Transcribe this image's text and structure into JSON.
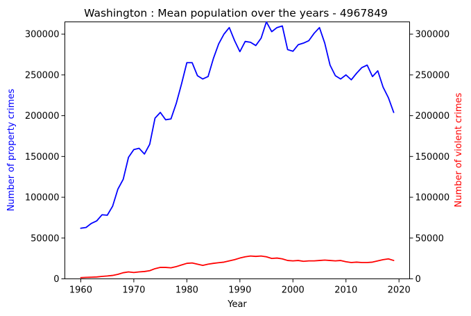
{
  "chart_data": {
    "type": "line",
    "title": "Washington : Mean population over the years - 4967849",
    "xlabel": "Year",
    "ylabel_left": "Number of property crimes",
    "ylabel_right": "Number of violent crimes",
    "xlim": [
      1957,
      2022
    ],
    "ylim": [
      0,
      315000
    ],
    "xticks": [
      1960,
      1970,
      1980,
      1990,
      2000,
      2010,
      2020
    ],
    "yticks": [
      0,
      50000,
      100000,
      150000,
      200000,
      250000,
      300000
    ],
    "grid": false,
    "x": [
      1960,
      1961,
      1962,
      1963,
      1964,
      1965,
      1966,
      1967,
      1968,
      1969,
      1970,
      1971,
      1972,
      1973,
      1974,
      1975,
      1976,
      1977,
      1978,
      1979,
      1980,
      1981,
      1982,
      1983,
      1984,
      1985,
      1986,
      1987,
      1988,
      1989,
      1990,
      1991,
      1992,
      1993,
      1994,
      1995,
      1996,
      1997,
      1998,
      1999,
      2000,
      2001,
      2002,
      2003,
      2004,
      2005,
      2006,
      2007,
      2008,
      2009,
      2010,
      2011,
      2012,
      2013,
      2014,
      2015,
      2016,
      2017,
      2018,
      2019
    ],
    "series": [
      {
        "name": "Number of property crimes",
        "color": "#0000ff",
        "axis": "left",
        "values": [
          62000,
          63000,
          68000,
          71000,
          78500,
          78000,
          89000,
          110000,
          122000,
          149000,
          158500,
          160000,
          153000,
          165000,
          197000,
          204000,
          195000,
          196000,
          215000,
          239000,
          265000,
          265000,
          249000,
          245000,
          248000,
          270000,
          288000,
          300000,
          308000,
          292000,
          278500,
          291000,
          290000,
          286000,
          295000,
          315000,
          303000,
          308000,
          310000,
          281000,
          279000,
          287000,
          289000,
          292000,
          301000,
          308000,
          289000,
          262000,
          249000,
          245000,
          250000,
          244000,
          252000,
          259000,
          262000,
          248000,
          255000,
          235000,
          222000,
          204000
        ]
      },
      {
        "name": "Number of violent crimes",
        "color": "#ff0000",
        "axis": "right",
        "values": [
          1500,
          1800,
          2000,
          2300,
          3000,
          3500,
          4200,
          5500,
          7500,
          8500,
          7800,
          8500,
          9000,
          10000,
          12500,
          14000,
          14000,
          13500,
          15000,
          17000,
          19000,
          19500,
          18000,
          16500,
          18000,
          19000,
          19800,
          20500,
          22000,
          23500,
          25500,
          27000,
          28000,
          27500,
          28000,
          27000,
          25000,
          25500,
          24500,
          22500,
          22000,
          22500,
          21500,
          22000,
          22000,
          22500,
          23000,
          22500,
          22000,
          22500,
          21000,
          20000,
          20500,
          20000,
          20000,
          20500,
          22000,
          23500,
          24500,
          22500
        ]
      }
    ]
  }
}
